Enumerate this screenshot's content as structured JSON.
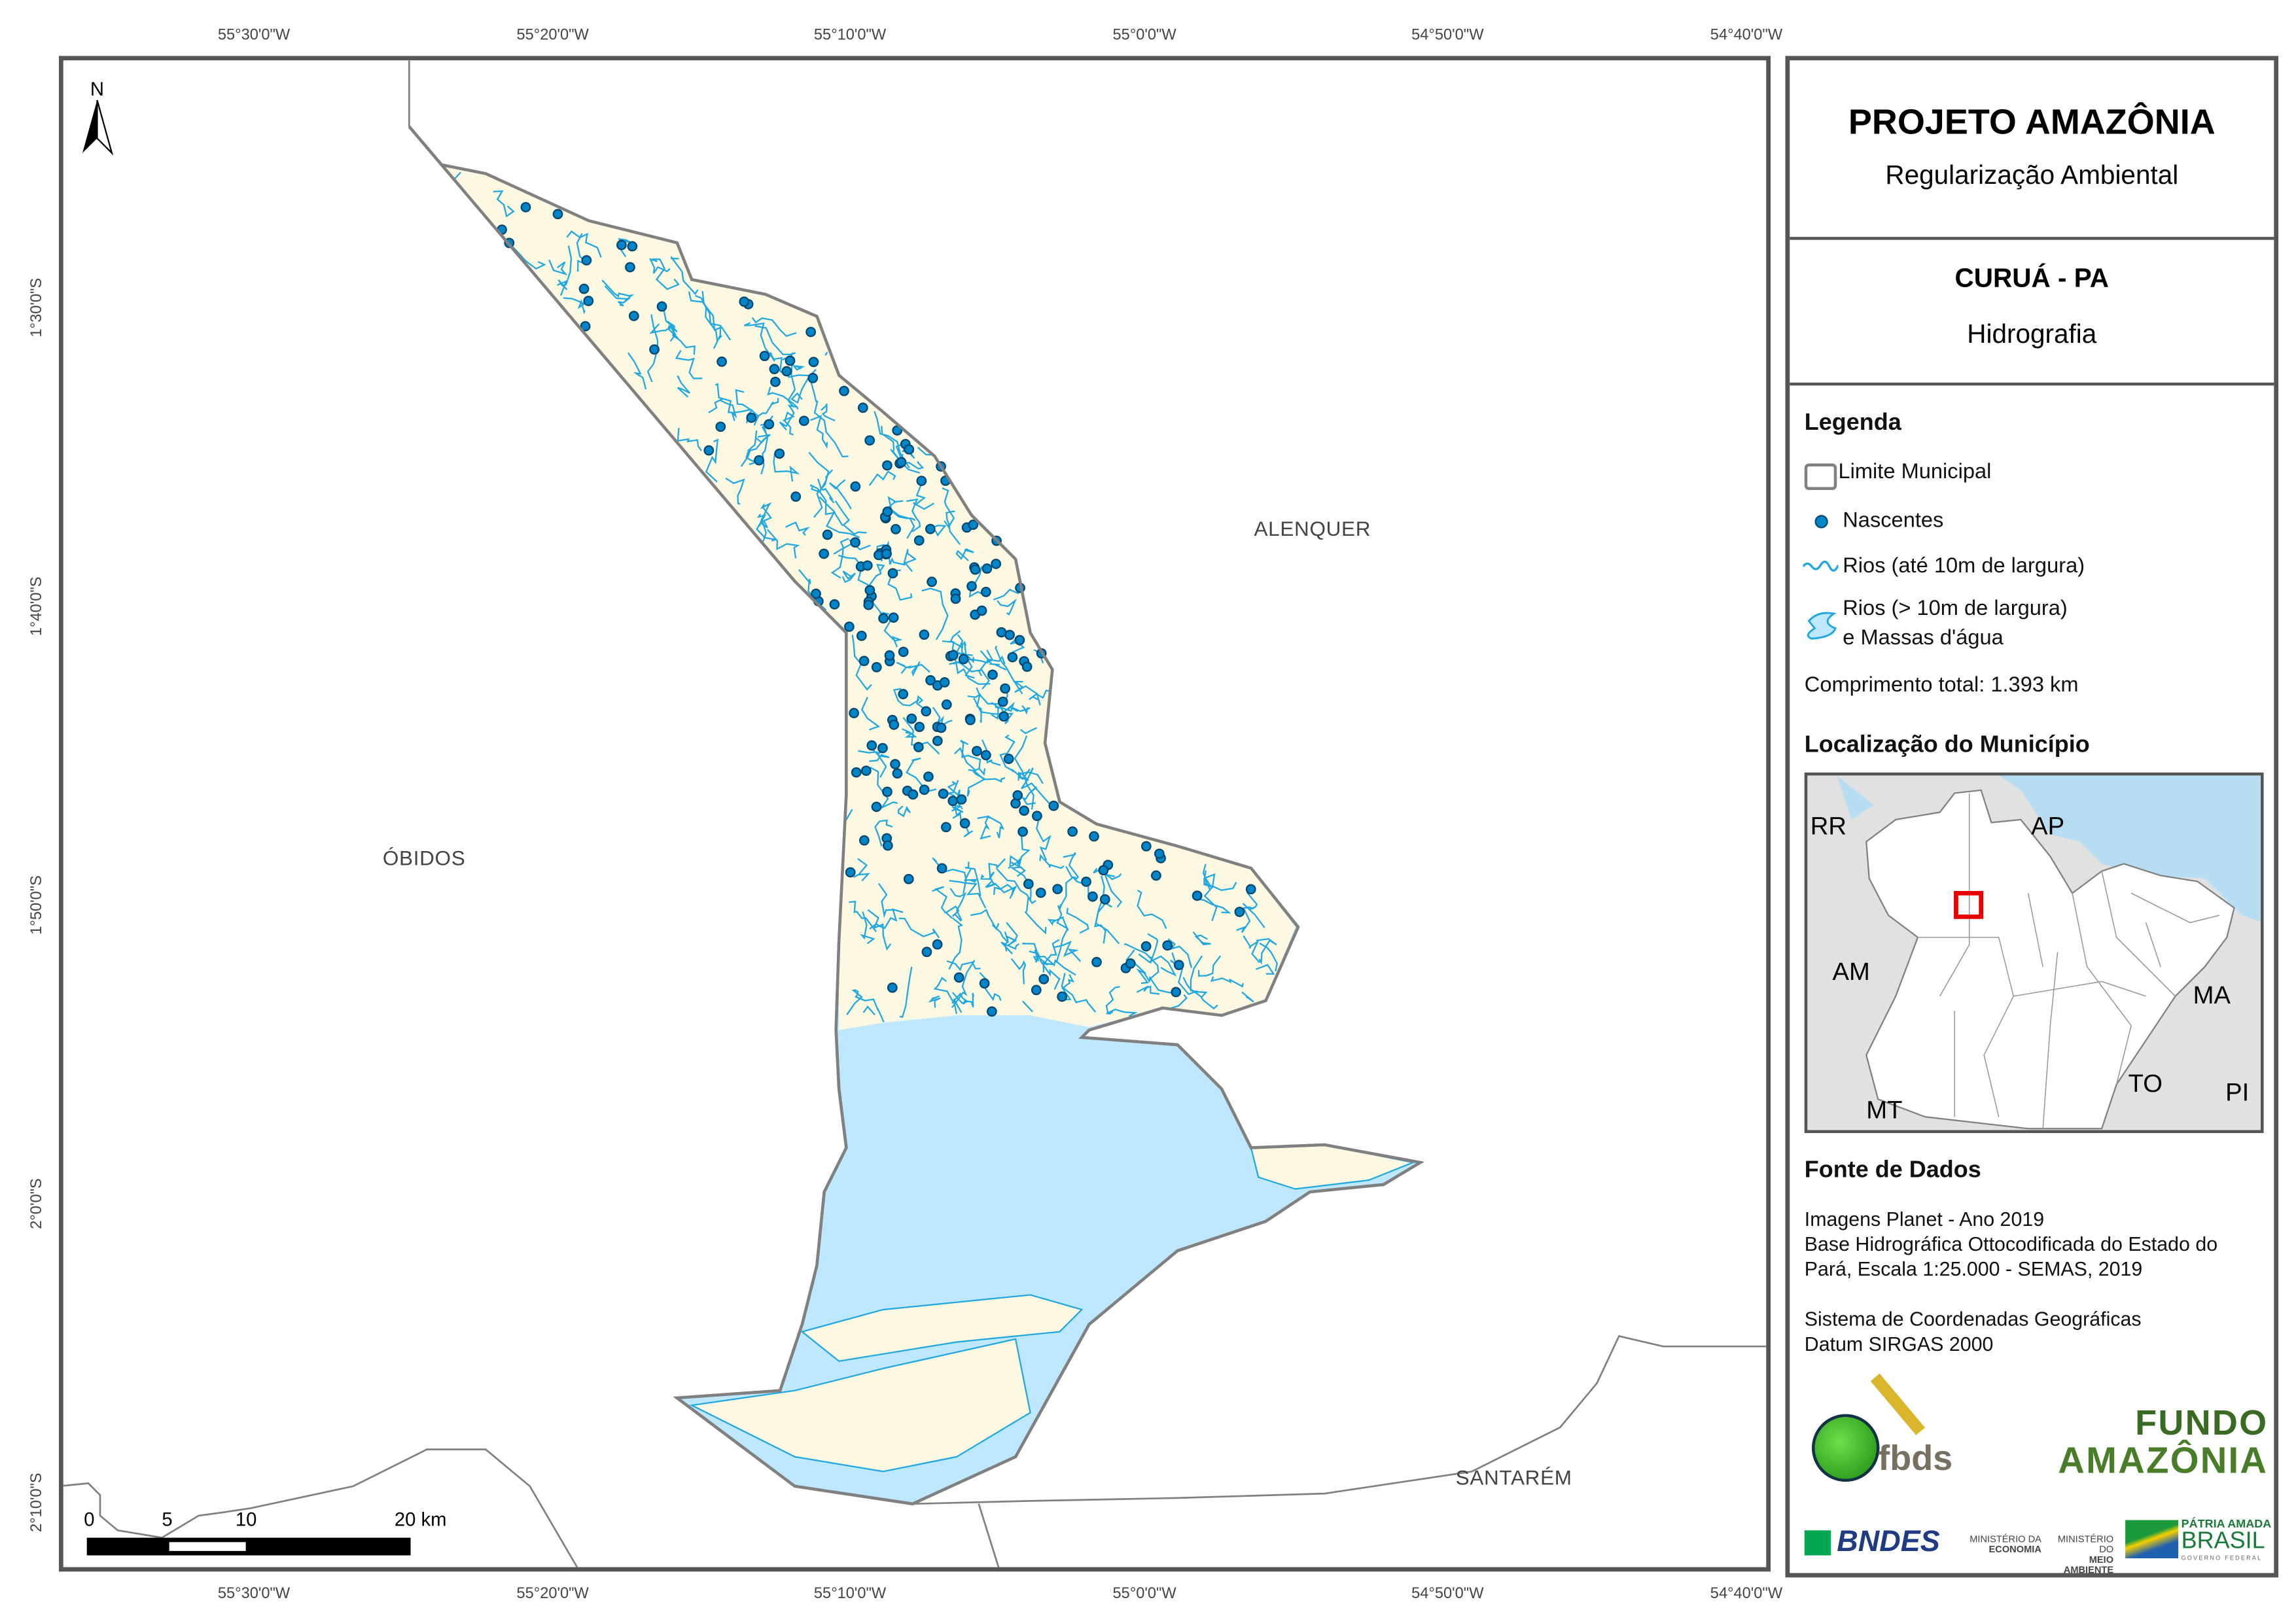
{
  "title": {
    "main": "PROJETO AMAZÔNIA",
    "sub": "Regularização Ambiental"
  },
  "municipality": {
    "name": "CURUÁ - PA",
    "theme": "Hidrografia"
  },
  "legend": {
    "heading": "Legenda",
    "items": [
      {
        "label": "Limite Municipal",
        "icon": "polygon-outline-icon",
        "color": "#808080"
      },
      {
        "label": "Nascentes",
        "icon": "spring-point-icon",
        "color": "#0070a8"
      },
      {
        "label": "Rios (até 10m de largura)",
        "icon": "river-line-icon",
        "color": "#1fa7e0"
      },
      {
        "label_line1": "Rios (> 10m de largura)",
        "label_line2": "e Massas d'água",
        "icon": "water-body-icon",
        "color": "#bee8ff"
      }
    ],
    "total_length": "Comprimento total:  1.393 km"
  },
  "location": {
    "heading": "Localização do Município",
    "states": [
      "RR",
      "AP",
      "AM",
      "MA",
      "TO",
      "PI",
      "MT"
    ],
    "highlight_color": "#e60000"
  },
  "sources": {
    "heading": "Fonte de Dados",
    "lines": [
      "Imagens Planet - Ano 2019",
      "Base Hidrográfica Ottocodificada do Estado do",
      "Pará, Escala 1:25.000 - SEMAS, 2019",
      "Sistema de Coordenadas Geográficas",
      "Datum SIRGAS 2000"
    ]
  },
  "logos": {
    "fbds": "fbds",
    "fundo1": "FUNDO",
    "fundo2": "AMAZÔNIA",
    "bndes": "BNDES",
    "min_eco1": "MINISTÉRIO DA",
    "min_eco2": "ECONOMIA",
    "min_amb1": "MINISTÉRIO DO",
    "min_amb2": "MEIO AMBIENTE",
    "brasil1": "PÁTRIA AMADA",
    "brasil2": "BRASIL",
    "brasil3": "GOVERNO FEDERAL"
  },
  "map": {
    "north_label": "N",
    "places": [
      "ALENQUER",
      "ÓBIDOS",
      "SANTARÉM"
    ],
    "lon_ticks": [
      "55°30'0\"W",
      "55°20'0\"W",
      "55°10'0\"W",
      "55°0'0\"W",
      "54°50'0\"W",
      "54°40'0\"W"
    ],
    "lat_ticks": [
      "1°30'0\"S",
      "1°40'0\"S",
      "1°50'0\"S",
      "2°0'0\"S",
      "2°10'0\"S"
    ],
    "scale_labels": [
      "0",
      "5",
      "10",
      "20 km"
    ],
    "colors": {
      "land": "#fdf8e1",
      "water": "#bee8ff",
      "river": "#1fa7e0",
      "spring": "#0070a8",
      "boundary": "#808080"
    }
  }
}
